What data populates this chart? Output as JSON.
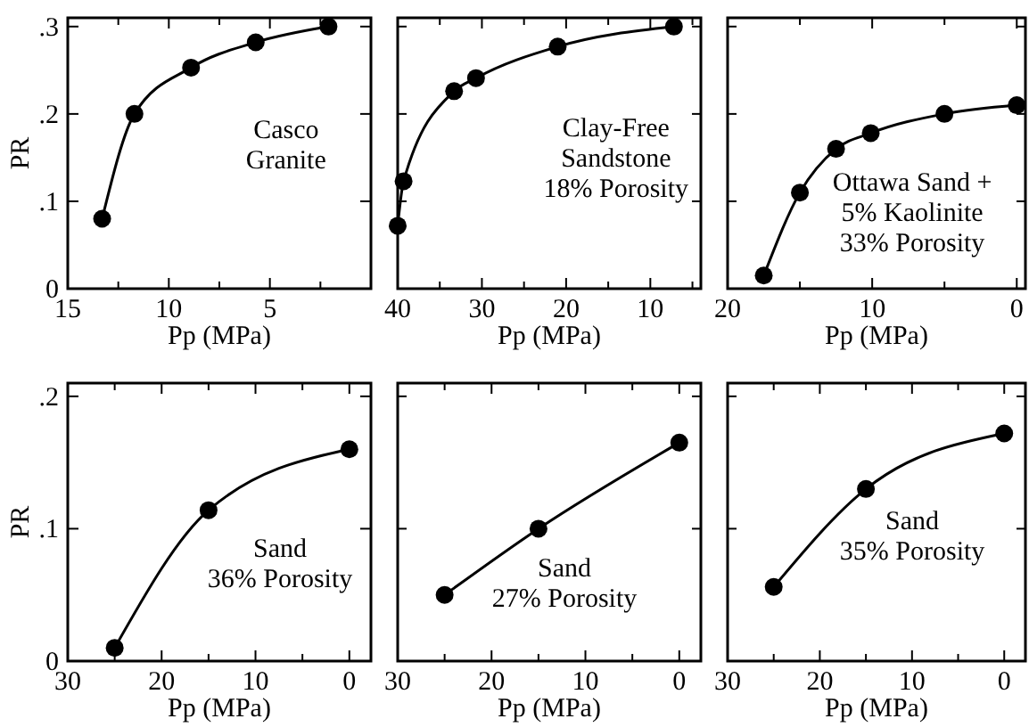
{
  "chart_data": [
    {
      "type": "line",
      "ylabel": "PR",
      "xlabel": "Pp (MPa)",
      "x": [
        13.3,
        11.7,
        8.9,
        5.7,
        2.1
      ],
      "series": [
        {
          "color": "#000000",
          "values": [
            0.08,
            0.2,
            0.253,
            0.282,
            0.3
          ]
        }
      ],
      "xlim": [
        15,
        0
      ],
      "xticks": [
        15,
        {
          "value": 12.5,
          "label": null
        },
        10,
        {
          "value": 7.5,
          "label": null
        },
        5,
        {
          "value": 2.5,
          "label": null
        }
      ],
      "ylim": [
        0,
        0.31
      ],
      "yticks": [
        {
          "value": 0,
          "label": "0"
        },
        {
          "value": 0.1,
          "label": ".1"
        },
        {
          "value": 0.2,
          "label": ".2"
        },
        {
          "value": 0.3,
          "label": ".3"
        }
      ],
      "marker": "circle",
      "line_style": "solid",
      "annotations": [
        "Casco\nGranite"
      ]
    },
    {
      "type": "line",
      "xlabel": "Pp (MPa)",
      "x": [
        40,
        39.3,
        33.3,
        30.7,
        21,
        7.2
      ],
      "series": [
        {
          "color": "#000000",
          "values": [
            0.072,
            0.123,
            0.226,
            0.241,
            0.277,
            0.3
          ]
        }
      ],
      "xlim": [
        40,
        4
      ],
      "xticks": [
        40,
        {
          "value": 35,
          "label": null
        },
        30,
        {
          "value": 25,
          "label": null
        },
        20,
        {
          "value": 15,
          "label": null
        },
        10,
        {
          "value": 5,
          "label": null
        }
      ],
      "ylim": [
        0,
        0.31
      ],
      "yticks": [
        {
          "value": 0,
          "label": null
        },
        {
          "value": 0.1,
          "label": null
        },
        {
          "value": 0.2,
          "label": null
        },
        {
          "value": 0.3,
          "label": null
        }
      ],
      "tick_labels": "x",
      "marker": "circle",
      "line_style": "solid",
      "annotations": [
        "Clay-Free\nSandstone\n18% Porosity"
      ]
    },
    {
      "type": "line",
      "xlabel": "Pp (MPa)",
      "x": [
        17.5,
        15,
        12.5,
        10.1,
        5,
        0
      ],
      "series": [
        {
          "color": "#000000",
          "values": [
            0.015,
            0.11,
            0.16,
            0.178,
            0.2,
            0.21
          ]
        }
      ],
      "xlim": [
        20,
        -0.6
      ],
      "xticks": [
        20,
        {
          "value": 15,
          "label": null
        },
        10,
        {
          "value": 5,
          "label": null
        },
        0
      ],
      "ylim": [
        0,
        0.31
      ],
      "yticks": [
        {
          "value": 0,
          "label": null
        },
        {
          "value": 0.1,
          "label": null
        },
        {
          "value": 0.2,
          "label": null
        },
        {
          "value": 0.3,
          "label": null
        }
      ],
      "tick_labels": "x",
      "marker": "circle",
      "line_style": "solid",
      "annotations": [
        "Ottawa Sand +\n5% Kaolinite\n33% Porosity"
      ]
    },
    {
      "type": "line",
      "ylabel": "PR",
      "xlabel": "Pp (MPa)",
      "x": [
        25,
        15,
        0
      ],
      "series": [
        {
          "color": "#000000",
          "values": [
            0.01,
            0.114,
            0.16
          ]
        }
      ],
      "xlim": [
        30,
        -2.3
      ],
      "xticks": [
        30,
        {
          "value": 25,
          "label": null
        },
        20,
        {
          "value": 15,
          "label": null
        },
        10,
        {
          "value": 5,
          "label": null
        },
        0
      ],
      "ylim": [
        0,
        0.21
      ],
      "yticks": [
        {
          "value": 0,
          "label": "0"
        },
        {
          "value": 0.1,
          "label": ".1"
        },
        {
          "value": 0.2,
          "label": ".2"
        }
      ],
      "marker": "circle",
      "line_style": "solid",
      "annotations": [
        "Sand\n36% Porosity"
      ]
    },
    {
      "type": "line",
      "xlabel": "Pp (MPa)",
      "x": [
        25,
        15,
        0
      ],
      "series": [
        {
          "color": "#000000",
          "values": [
            0.05,
            0.1,
            0.165
          ]
        }
      ],
      "xlim": [
        30,
        -2.3
      ],
      "xticks": [
        30,
        {
          "value": 25,
          "label": null
        },
        20,
        {
          "value": 15,
          "label": null
        },
        10,
        {
          "value": 5,
          "label": null
        },
        0
      ],
      "ylim": [
        0,
        0.21
      ],
      "yticks": [
        {
          "value": 0,
          "label": null
        },
        {
          "value": 0.1,
          "label": null
        },
        {
          "value": 0.2,
          "label": null
        }
      ],
      "tick_labels": "x",
      "marker": "circle",
      "line_style": "solid",
      "annotations": [
        "Sand\n27% Porosity"
      ]
    },
    {
      "type": "line",
      "xlabel": "Pp (MPa)",
      "x": [
        25,
        15,
        0
      ],
      "series": [
        {
          "color": "#000000",
          "values": [
            0.056,
            0.13,
            0.172
          ]
        }
      ],
      "xlim": [
        30,
        -2.3
      ],
      "xticks": [
        30,
        {
          "value": 25,
          "label": null
        },
        20,
        {
          "value": 15,
          "label": null
        },
        10,
        {
          "value": 5,
          "label": null
        },
        0
      ],
      "ylim": [
        0,
        0.21
      ],
      "yticks": [
        {
          "value": 0,
          "label": null
        },
        {
          "value": 0.1,
          "label": null
        },
        {
          "value": 0.2,
          "label": null
        }
      ],
      "tick_labels": "x",
      "marker": "circle",
      "line_style": "solid",
      "annotations": [
        "Sand\n35% Porosity"
      ]
    }
  ]
}
